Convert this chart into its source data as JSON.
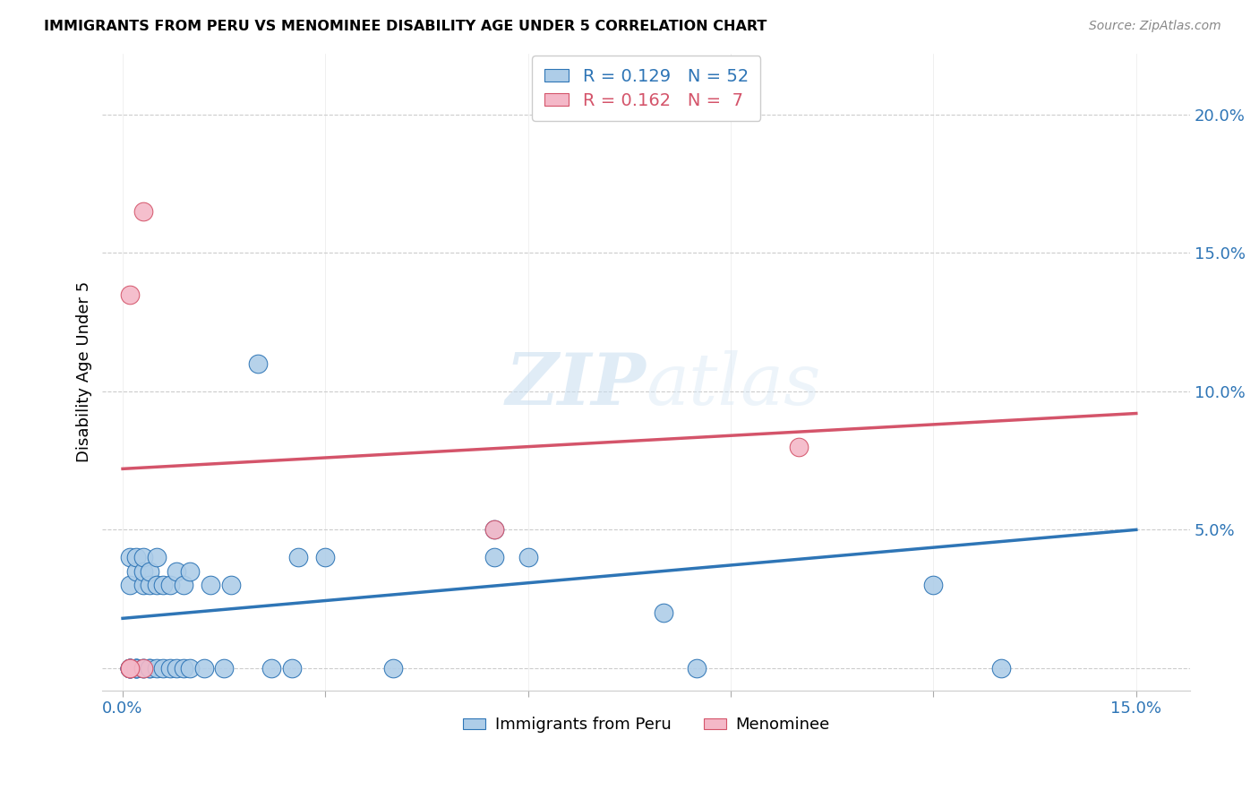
{
  "title": "IMMIGRANTS FROM PERU VS MENOMINEE DISABILITY AGE UNDER 5 CORRELATION CHART",
  "source": "Source: ZipAtlas.com",
  "ylabel": "Disability Age Under 5",
  "yticks": [
    0.0,
    0.05,
    0.1,
    0.15,
    0.2
  ],
  "ytick_labels": [
    "",
    "5.0%",
    "10.0%",
    "15.0%",
    "20.0%"
  ],
  "xticks": [
    0.0,
    0.03,
    0.06,
    0.09,
    0.12,
    0.15
  ],
  "legend_blue_r": "0.129",
  "legend_blue_n": "52",
  "legend_pink_r": "0.162",
  "legend_pink_n": " 7",
  "blue_color": "#aecde8",
  "blue_line_color": "#2e75b6",
  "pink_color": "#f4b8c8",
  "pink_line_color": "#d4546a",
  "watermark_zip": "ZIP",
  "watermark_atlas": "atlas",
  "blue_points_x": [
    0.001,
    0.001,
    0.001,
    0.001,
    0.001,
    0.001,
    0.001,
    0.002,
    0.002,
    0.002,
    0.002,
    0.002,
    0.002,
    0.003,
    0.003,
    0.003,
    0.003,
    0.003,
    0.004,
    0.004,
    0.004,
    0.004,
    0.005,
    0.005,
    0.005,
    0.006,
    0.006,
    0.007,
    0.007,
    0.008,
    0.008,
    0.009,
    0.009,
    0.01,
    0.01,
    0.012,
    0.013,
    0.015,
    0.016,
    0.02,
    0.022,
    0.025,
    0.026,
    0.03,
    0.04,
    0.055,
    0.06,
    0.08,
    0.085,
    0.12,
    0.13,
    0.055
  ],
  "blue_points_y": [
    0.0,
    0.0,
    0.0,
    0.0,
    0.0,
    0.03,
    0.04,
    0.0,
    0.0,
    0.0,
    0.0,
    0.035,
    0.04,
    0.0,
    0.0,
    0.03,
    0.035,
    0.04,
    0.0,
    0.0,
    0.03,
    0.035,
    0.0,
    0.03,
    0.04,
    0.0,
    0.03,
    0.0,
    0.03,
    0.0,
    0.035,
    0.0,
    0.03,
    0.0,
    0.035,
    0.0,
    0.03,
    0.0,
    0.03,
    0.11,
    0.0,
    0.0,
    0.04,
    0.04,
    0.0,
    0.04,
    0.04,
    0.02,
    0.0,
    0.03,
    0.0,
    0.05
  ],
  "pink_points_x": [
    0.001,
    0.001,
    0.003,
    0.003,
    0.055,
    0.1,
    0.001
  ],
  "pink_points_y": [
    0.0,
    0.135,
    0.0,
    0.165,
    0.05,
    0.08,
    0.0
  ],
  "blue_line_x": [
    0.0,
    0.15
  ],
  "blue_line_y": [
    0.018,
    0.05
  ],
  "pink_line_x": [
    0.0,
    0.15
  ],
  "pink_line_y": [
    0.072,
    0.092
  ],
  "xlim": [
    -0.003,
    0.158
  ],
  "ylim": [
    -0.008,
    0.222
  ]
}
